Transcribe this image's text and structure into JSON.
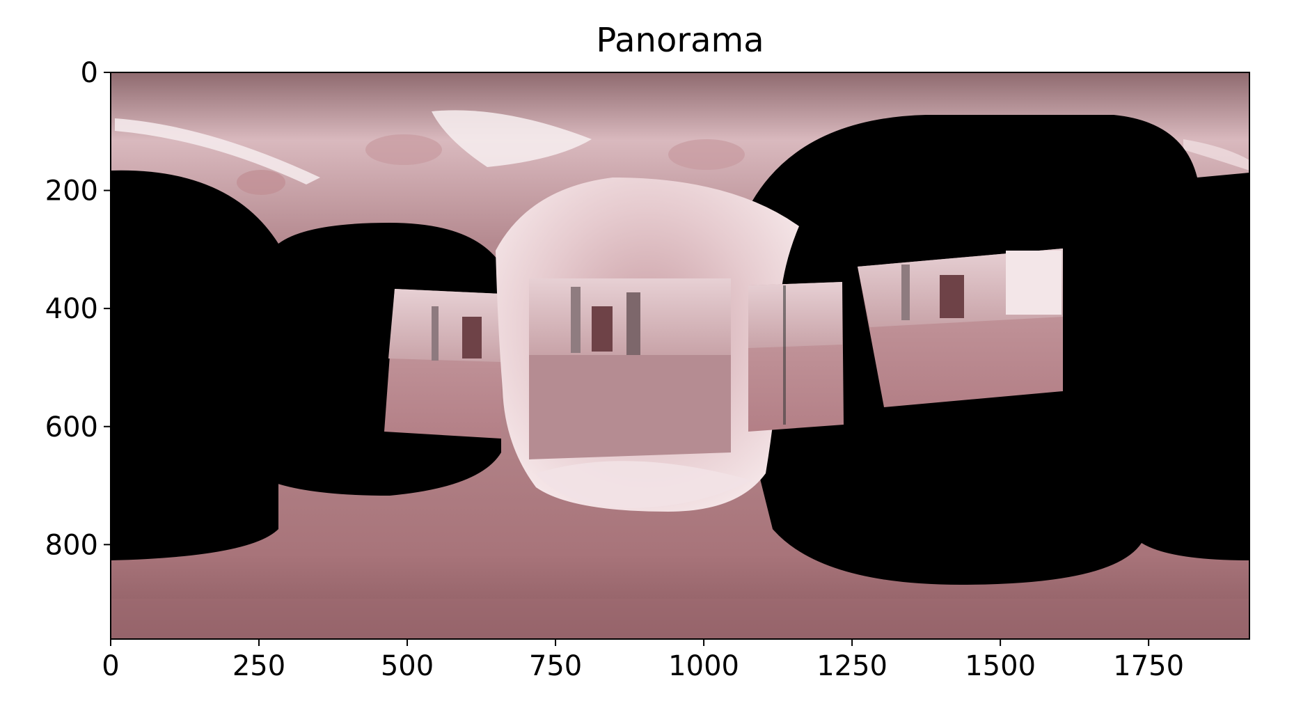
{
  "figure": {
    "title": "Panorama"
  },
  "chart_data": {
    "type": "image",
    "title": "Panorama",
    "xlabel": "",
    "ylabel": "",
    "xlim": [
      0,
      1920
    ],
    "ylim": [
      960,
      0
    ],
    "x_ticks": [
      0,
      250,
      500,
      750,
      1000,
      1250,
      1500,
      1750
    ],
    "y_ticks": [
      0,
      200,
      400,
      600,
      800
    ],
    "x_tick_labels": [
      "0",
      "250",
      "500",
      "750",
      "1000",
      "1250",
      "1500",
      "1750"
    ],
    "y_tick_labels": [
      "0",
      "200",
      "400",
      "600",
      "800"
    ],
    "grid": false,
    "legend": "none"
  },
  "colors": {
    "room_tone": "#b9868a",
    "floor_tone": "#a56a70",
    "ceiling_light": "#f3e4e6",
    "void": "#000000"
  }
}
